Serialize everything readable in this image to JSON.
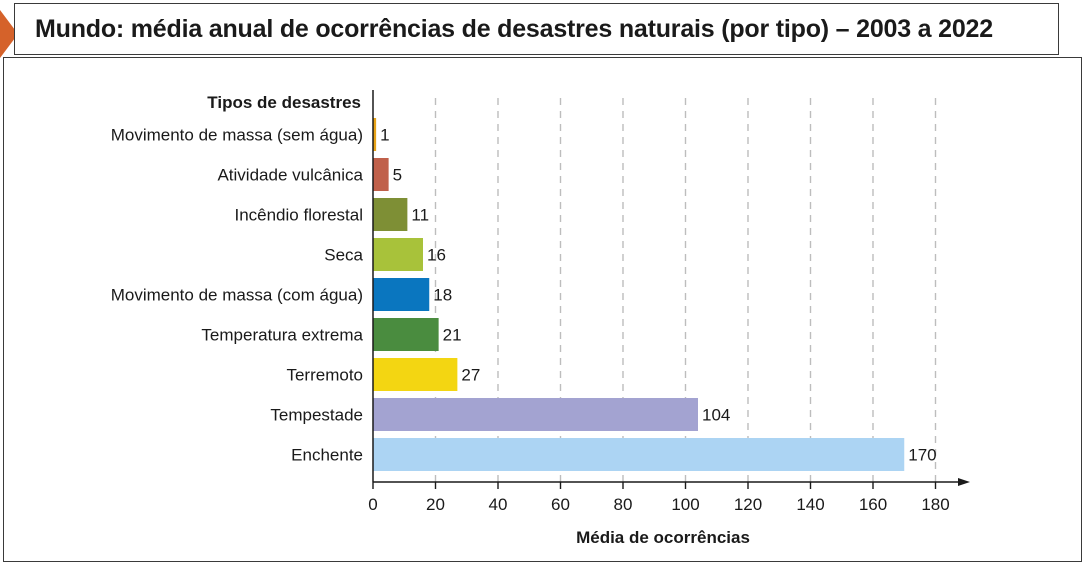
{
  "title": "Mundo: média anual de ocorrências de desastres naturais (por tipo) – 2003 a 2022",
  "chart_data": {
    "type": "bar",
    "orientation": "horizontal",
    "category_axis_label": "Tipos de desastres",
    "value_axis_label": "Média de ocorrências",
    "xlim": [
      0,
      180
    ],
    "xticks": [
      0,
      20,
      40,
      60,
      80,
      100,
      120,
      140,
      160,
      180
    ],
    "grid": "vertical dashed",
    "categories": [
      "Movimento de massa (sem água)",
      "Atividade vulcânica",
      "Incêndio florestal",
      "Seca",
      "Movimento de massa (com água)",
      "Temperatura extrema",
      "Terremoto",
      "Tempestade",
      "Enchente"
    ],
    "values": [
      1,
      5,
      11,
      16,
      18,
      21,
      27,
      104,
      170
    ],
    "colors": [
      "#e8a317",
      "#c0604a",
      "#7e8f35",
      "#a8c23a",
      "#0a76bf",
      "#4a8c3f",
      "#f3d612",
      "#a3a3d1",
      "#acd4f3"
    ]
  }
}
